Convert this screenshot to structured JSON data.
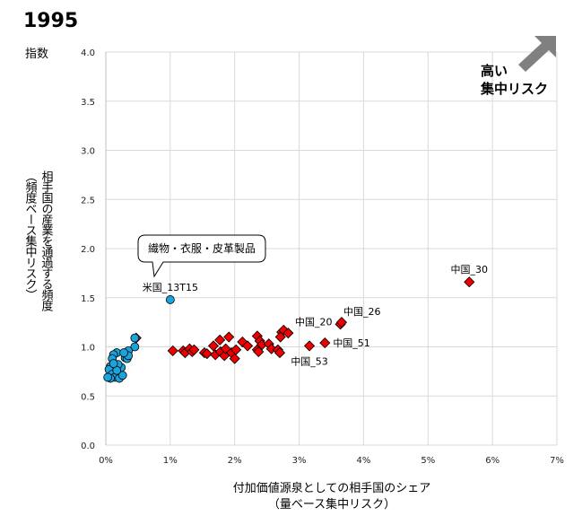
{
  "chart_data": {
    "type": "scatter",
    "title": "1995",
    "y_unit_label": "指数",
    "xlabel": [
      "付加価値源泉としての相手国のシェア",
      "（量ベース集中リスク）"
    ],
    "ylabel": [
      "相手国の産業を通過する頻度",
      "（頻度ベース集中リスク）"
    ],
    "xlim": [
      0,
      7
    ],
    "ylim": [
      0,
      4
    ],
    "x_ticks": [
      "0%",
      "1%",
      "2%",
      "3%",
      "4%",
      "5%",
      "6%",
      "7%"
    ],
    "y_ticks": [
      "0.0",
      "0.5",
      "1.0",
      "1.5",
      "2.0",
      "2.5",
      "3.0",
      "3.5",
      "4.0"
    ],
    "grid": true,
    "risk_arrow_label": [
      "高い",
      "集中リスク"
    ],
    "callout": "繊物・衣服・皮革製品",
    "colors": {
      "us": "#1aa3dd",
      "china": "#ee0000",
      "arrow": "#808080",
      "grid": "#d9d9d9"
    },
    "series": [
      {
        "name": "China",
        "marker": "diamond",
        "points": [
          {
            "x": 0.47,
            "y": 1.09
          },
          {
            "x": 1.04,
            "y": 0.96
          },
          {
            "x": 1.2,
            "y": 0.96
          },
          {
            "x": 1.23,
            "y": 0.94
          },
          {
            "x": 1.3,
            "y": 0.98
          },
          {
            "x": 1.34,
            "y": 0.95
          },
          {
            "x": 1.37,
            "y": 0.97
          },
          {
            "x": 1.53,
            "y": 0.94
          },
          {
            "x": 1.57,
            "y": 0.93
          },
          {
            "x": 1.67,
            "y": 1.01
          },
          {
            "x": 1.7,
            "y": 0.92
          },
          {
            "x": 1.77,
            "y": 1.07
          },
          {
            "x": 1.78,
            "y": 0.95
          },
          {
            "x": 1.84,
            "y": 0.91
          },
          {
            "x": 1.86,
            "y": 0.98
          },
          {
            "x": 1.91,
            "y": 1.1
          },
          {
            "x": 1.95,
            "y": 0.94
          },
          {
            "x": 2.0,
            "y": 0.88
          },
          {
            "x": 2.02,
            "y": 0.97
          },
          {
            "x": 2.12,
            "y": 1.05
          },
          {
            "x": 2.2,
            "y": 1.01
          },
          {
            "x": 2.35,
            "y": 1.11
          },
          {
            "x": 2.39,
            "y": 1.06
          },
          {
            "x": 2.42,
            "y": 1.02
          },
          {
            "x": 2.35,
            "y": 0.97
          },
          {
            "x": 2.37,
            "y": 0.95
          },
          {
            "x": 2.53,
            "y": 1.03
          },
          {
            "x": 2.57,
            "y": 0.98
          },
          {
            "x": 2.67,
            "y": 0.97
          },
          {
            "x": 2.7,
            "y": 0.94
          },
          {
            "x": 2.73,
            "y": 1.15
          },
          {
            "x": 2.76,
            "y": 1.17
          },
          {
            "x": 2.83,
            "y": 1.14
          },
          {
            "x": 2.71,
            "y": 1.1
          },
          {
            "x": 3.16,
            "y": 1.01,
            "label": "中国_53",
            "pos": "below"
          },
          {
            "x": 3.4,
            "y": 1.04,
            "label": "中国_51",
            "pos": "right"
          },
          {
            "x": 3.64,
            "y": 1.23,
            "label": "中国_20",
            "pos": "left"
          },
          {
            "x": 3.66,
            "y": 1.25,
            "label": "中国_26",
            "pos": "upright"
          },
          {
            "x": 5.64,
            "y": 1.66,
            "label": "中国_30",
            "pos": "above"
          }
        ]
      },
      {
        "name": "US",
        "marker": "circle",
        "points": [
          {
            "x": 0.45,
            "y": 1.09
          },
          {
            "x": 0.45,
            "y": 1.0
          },
          {
            "x": 0.35,
            "y": 0.96
          },
          {
            "x": 0.3,
            "y": 0.89
          },
          {
            "x": 0.33,
            "y": 0.88
          },
          {
            "x": 0.17,
            "y": 0.94
          },
          {
            "x": 0.12,
            "y": 0.92
          },
          {
            "x": 0.1,
            "y": 0.88
          },
          {
            "x": 0.07,
            "y": 0.8
          },
          {
            "x": 0.05,
            "y": 0.77
          },
          {
            "x": 0.1,
            "y": 0.72
          },
          {
            "x": 0.14,
            "y": 0.69
          },
          {
            "x": 0.21,
            "y": 0.68
          },
          {
            "x": 0.26,
            "y": 0.71
          },
          {
            "x": 0.24,
            "y": 0.79
          },
          {
            "x": 0.19,
            "y": 0.82
          },
          {
            "x": 0.17,
            "y": 0.76
          },
          {
            "x": 0.07,
            "y": 0.68
          },
          {
            "x": 0.03,
            "y": 0.69
          },
          {
            "x": 0.12,
            "y": 0.83
          },
          {
            "x": 0.35,
            "y": 0.91
          },
          {
            "x": 0.28,
            "y": 0.94
          },
          {
            "x": 1.0,
            "y": 1.48,
            "label": "米国_13T15",
            "pos": "above"
          }
        ]
      }
    ]
  }
}
